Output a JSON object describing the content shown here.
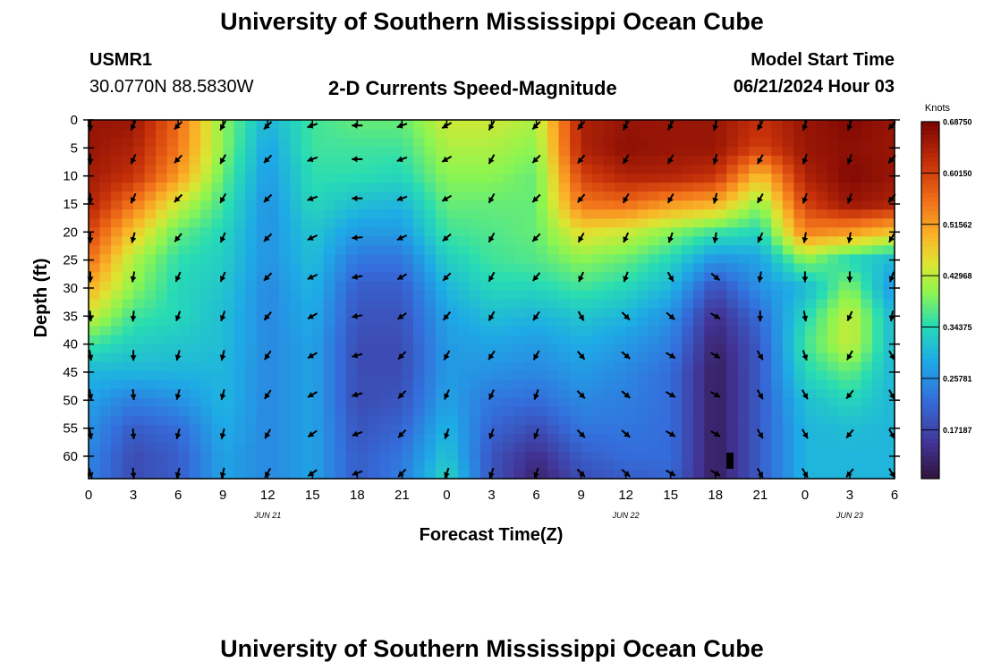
{
  "page": {
    "title_top": "University of Southern Mississippi Ocean Cube",
    "title_bottom": "University of Southern Mississippi Ocean Cube",
    "station_id": "USMR1",
    "station_coords": "30.0770N  88.5830W",
    "subtitle": "2-D Currents Speed-Magnitude",
    "model_start_label": "Model Start Time",
    "model_start_value": "06/21/2024 Hour 03"
  },
  "chart_data": {
    "type": "heatmap",
    "title": "2-D Currents Speed-Magnitude",
    "xlabel": "Forecast Time(Z)",
    "ylabel": "Depth (ft)",
    "x_ticks": [
      "0",
      "3",
      "6",
      "9",
      "12",
      "15",
      "18",
      "21",
      "0",
      "3",
      "6",
      "9",
      "12",
      "15",
      "18",
      "21",
      "0",
      "3",
      "6"
    ],
    "date_labels": [
      {
        "label": "JUN 21",
        "tick_index": 4
      },
      {
        "label": "JUN 22",
        "tick_index": 12
      },
      {
        "label": "JUN 23",
        "tick_index": 17
      }
    ],
    "y_ticks": [
      0,
      5,
      10,
      15,
      20,
      25,
      30,
      35,
      40,
      45,
      50,
      55,
      60
    ],
    "ylim": [
      0,
      64
    ],
    "x_hours": [
      0,
      3,
      6,
      9,
      12,
      15,
      18,
      21,
      24,
      27,
      30,
      33,
      36,
      39,
      42,
      45,
      48,
      51,
      54
    ],
    "depths_ft": [
      0,
      5,
      10,
      15,
      20,
      25,
      30,
      35,
      40,
      45,
      50,
      55,
      60,
      64
    ],
    "speed_knots": [
      [
        0.66,
        0.66,
        0.56,
        0.4,
        0.3,
        0.36,
        0.38,
        0.38,
        0.44,
        0.44,
        0.42,
        0.64,
        0.66,
        0.66,
        0.66,
        0.62,
        0.66,
        0.68,
        0.66
      ],
      [
        0.66,
        0.64,
        0.55,
        0.4,
        0.28,
        0.36,
        0.36,
        0.36,
        0.42,
        0.42,
        0.4,
        0.64,
        0.67,
        0.66,
        0.66,
        0.6,
        0.66,
        0.67,
        0.66
      ],
      [
        0.65,
        0.62,
        0.52,
        0.38,
        0.27,
        0.35,
        0.35,
        0.34,
        0.4,
        0.4,
        0.38,
        0.6,
        0.64,
        0.64,
        0.62,
        0.48,
        0.64,
        0.68,
        0.66
      ],
      [
        0.64,
        0.55,
        0.44,
        0.36,
        0.26,
        0.34,
        0.31,
        0.3,
        0.38,
        0.38,
        0.38,
        0.55,
        0.56,
        0.52,
        0.5,
        0.4,
        0.6,
        0.66,
        0.64
      ],
      [
        0.6,
        0.48,
        0.38,
        0.34,
        0.26,
        0.32,
        0.27,
        0.27,
        0.36,
        0.37,
        0.38,
        0.46,
        0.44,
        0.4,
        0.36,
        0.34,
        0.54,
        0.52,
        0.48
      ],
      [
        0.56,
        0.42,
        0.35,
        0.33,
        0.26,
        0.31,
        0.23,
        0.23,
        0.33,
        0.36,
        0.37,
        0.4,
        0.38,
        0.34,
        0.26,
        0.28,
        0.4,
        0.34,
        0.3
      ],
      [
        0.5,
        0.4,
        0.34,
        0.32,
        0.25,
        0.3,
        0.2,
        0.2,
        0.3,
        0.34,
        0.34,
        0.36,
        0.34,
        0.3,
        0.18,
        0.26,
        0.3,
        0.4,
        0.26
      ],
      [
        0.44,
        0.36,
        0.34,
        0.31,
        0.25,
        0.29,
        0.19,
        0.19,
        0.28,
        0.31,
        0.3,
        0.32,
        0.3,
        0.26,
        0.14,
        0.22,
        0.34,
        0.44,
        0.3
      ],
      [
        0.36,
        0.33,
        0.32,
        0.31,
        0.25,
        0.28,
        0.18,
        0.18,
        0.27,
        0.28,
        0.27,
        0.29,
        0.27,
        0.24,
        0.12,
        0.2,
        0.36,
        0.44,
        0.3
      ],
      [
        0.3,
        0.3,
        0.3,
        0.3,
        0.25,
        0.28,
        0.18,
        0.18,
        0.27,
        0.26,
        0.25,
        0.27,
        0.25,
        0.22,
        0.11,
        0.2,
        0.34,
        0.38,
        0.3
      ],
      [
        0.28,
        0.24,
        0.26,
        0.3,
        0.25,
        0.28,
        0.18,
        0.19,
        0.28,
        0.23,
        0.22,
        0.25,
        0.24,
        0.22,
        0.11,
        0.2,
        0.31,
        0.34,
        0.3
      ],
      [
        0.26,
        0.2,
        0.22,
        0.29,
        0.25,
        0.28,
        0.19,
        0.21,
        0.3,
        0.21,
        0.18,
        0.23,
        0.23,
        0.22,
        0.11,
        0.2,
        0.3,
        0.31,
        0.3
      ],
      [
        0.25,
        0.18,
        0.2,
        0.28,
        0.25,
        0.28,
        0.2,
        0.23,
        0.32,
        0.19,
        0.14,
        0.2,
        0.22,
        0.22,
        0.11,
        0.2,
        0.3,
        0.3,
        0.3
      ],
      [
        0.24,
        0.18,
        0.2,
        0.28,
        0.25,
        0.28,
        0.2,
        0.24,
        0.34,
        0.19,
        0.12,
        0.18,
        0.2,
        0.21,
        0.11,
        0.2,
        0.3,
        0.3,
        0.3
      ]
    ],
    "arrow_depths_ft": [
      1,
      7,
      14,
      21,
      28,
      35,
      42,
      49,
      56,
      63
    ],
    "arrow_directions_deg": [
      [
        270,
        245,
        225,
        240,
        225,
        200,
        180,
        200,
        210,
        240,
        225,
        230,
        240,
        240,
        255,
        240,
        250,
        250,
        230
      ],
      [
        270,
        245,
        225,
        240,
        225,
        200,
        180,
        200,
        210,
        240,
        225,
        230,
        240,
        240,
        255,
        240,
        250,
        250,
        230
      ],
      [
        270,
        245,
        225,
        240,
        225,
        200,
        180,
        200,
        210,
        240,
        225,
        230,
        240,
        240,
        255,
        240,
        250,
        250,
        230
      ],
      [
        270,
        255,
        230,
        245,
        225,
        205,
        185,
        205,
        220,
        240,
        225,
        240,
        245,
        250,
        260,
        245,
        260,
        260,
        240
      ],
      [
        270,
        260,
        245,
        245,
        225,
        205,
        190,
        210,
        225,
        240,
        230,
        245,
        250,
        300,
        320,
        260,
        270,
        270,
        250
      ],
      [
        275,
        265,
        250,
        250,
        230,
        210,
        190,
        215,
        230,
        240,
        235,
        300,
        315,
        320,
        330,
        270,
        280,
        245,
        260
      ],
      [
        280,
        270,
        255,
        255,
        235,
        210,
        195,
        225,
        240,
        235,
        240,
        310,
        320,
        330,
        330,
        300,
        290,
        240,
        300
      ],
      [
        280,
        275,
        255,
        255,
        235,
        210,
        195,
        225,
        245,
        245,
        250,
        315,
        320,
        330,
        330,
        300,
        300,
        230,
        300
      ],
      [
        280,
        275,
        255,
        255,
        240,
        215,
        200,
        225,
        250,
        250,
        250,
        315,
        320,
        330,
        330,
        300,
        300,
        230,
        300
      ],
      [
        285,
        275,
        255,
        255,
        240,
        215,
        200,
        225,
        250,
        250,
        250,
        315,
        320,
        330,
        330,
        300,
        300,
        230,
        300
      ]
    ],
    "colorbar": {
      "label": "Knots",
      "min": 0.09,
      "max": 0.6875,
      "ticks": [
        "0.68750",
        "0.60150",
        "0.51562",
        "0.42968",
        "0.34375",
        "0.25781",
        "0.17187"
      ],
      "tick_values": [
        0.6875,
        0.6015,
        0.51562,
        0.42968,
        0.34375,
        0.25781,
        0.17187
      ]
    }
  }
}
